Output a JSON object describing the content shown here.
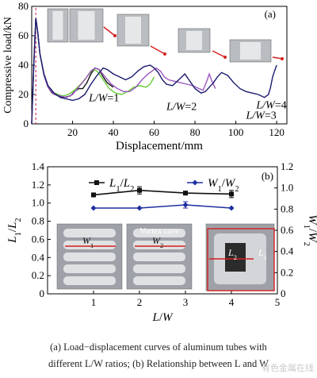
{
  "chart_data": [
    {
      "type": "line",
      "panel_label": "(a)",
      "xlabel": "Displacement/mm",
      "ylabel": "Compressive load/kN",
      "xlim": [
        0,
        125
      ],
      "ylim": [
        0,
        80
      ],
      "xticks": [
        "20",
        "40",
        "60",
        "80",
        "100",
        "120"
      ],
      "yticks": [
        "0",
        "20",
        "40",
        "60",
        "80"
      ],
      "grid": false,
      "series": [
        {
          "name": "L/W=1",
          "color": "#111111",
          "points": [
            [
              0,
              0
            ],
            [
              1,
              40
            ],
            [
              2,
              72
            ],
            [
              3,
              62
            ],
            [
              4,
              48
            ],
            [
              6,
              33
            ],
            [
              8,
              25
            ],
            [
              10,
              21
            ],
            [
              13,
              19
            ],
            [
              16,
              18
            ],
            [
              19,
              19
            ],
            [
              21,
              22
            ],
            [
              23,
              24
            ],
            [
              25,
              24
            ],
            [
              27,
              28
            ],
            [
              29,
              34
            ],
            [
              31,
              38
            ],
            [
              33,
              37
            ],
            [
              35,
              32
            ],
            [
              37,
              28
            ],
            [
              40,
              25
            ]
          ]
        },
        {
          "name": "L/W=2",
          "color": "#66cc33",
          "points": [
            [
              0,
              0
            ],
            [
              1,
              40
            ],
            [
              2,
              72
            ],
            [
              3,
              62
            ],
            [
              4,
              48
            ],
            [
              6,
              33
            ],
            [
              8,
              26
            ],
            [
              11,
              21
            ],
            [
              15,
              19
            ],
            [
              18,
              20
            ],
            [
              21,
              23
            ],
            [
              24,
              27
            ],
            [
              27,
              32
            ],
            [
              30,
              37
            ],
            [
              32,
              36
            ],
            [
              35,
              30
            ],
            [
              38,
              24
            ],
            [
              41,
              21
            ],
            [
              44,
              20
            ],
            [
              47,
              22
            ],
            [
              50,
              25
            ],
            [
              53,
              26
            ],
            [
              56,
              25
            ],
            [
              58,
              27
            ],
            [
              60,
              32
            ]
          ]
        },
        {
          "name": "L/W=3",
          "color": "#9b57c0",
          "points": [
            [
              0,
              0
            ],
            [
              1,
              40
            ],
            [
              2,
              72
            ],
            [
              3,
              62
            ],
            [
              4,
              48
            ],
            [
              6,
              33
            ],
            [
              8,
              25
            ],
            [
              11,
              20
            ],
            [
              14,
              19
            ],
            [
              17,
              18
            ],
            [
              20,
              20
            ],
            [
              23,
              25
            ],
            [
              26,
              30
            ],
            [
              29,
              36
            ],
            [
              31,
              38
            ],
            [
              33,
              37
            ],
            [
              36,
              32
            ],
            [
              39,
              27
            ],
            [
              42,
              24
            ],
            [
              45,
              22
            ],
            [
              48,
              22
            ],
            [
              51,
              25
            ],
            [
              54,
              30
            ],
            [
              57,
              34
            ],
            [
              59,
              36
            ],
            [
              61,
              38
            ],
            [
              63,
              36
            ],
            [
              65,
              32
            ],
            [
              67,
              30
            ],
            [
              70,
              29
            ],
            [
              73,
              28
            ],
            [
              76,
              27
            ],
            [
              79,
              26
            ],
            [
              82,
              24
            ],
            [
              84,
              23
            ],
            [
              86,
              30
            ],
            [
              87,
              34
            ],
            [
              88,
              30
            ],
            [
              90,
              24
            ]
          ]
        },
        {
          "name": "L/W=4",
          "color": "#1a1a6e",
          "points": [
            [
              0,
              0
            ],
            [
              1,
              40
            ],
            [
              2,
              72
            ],
            [
              3,
              62
            ],
            [
              4,
              48
            ],
            [
              6,
              34
            ],
            [
              8,
              26
            ],
            [
              11,
              21
            ],
            [
              14,
              18
            ],
            [
              17,
              17
            ],
            [
              20,
              16
            ],
            [
              23,
              17
            ],
            [
              26,
              20
            ],
            [
              29,
              27
            ],
            [
              32,
              33
            ],
            [
              35,
              38
            ],
            [
              37,
              37
            ],
            [
              40,
              34
            ],
            [
              43,
              32
            ],
            [
              46,
              30
            ],
            [
              49,
              32
            ],
            [
              52,
              36
            ],
            [
              55,
              39
            ],
            [
              58,
              40
            ],
            [
              60,
              38
            ],
            [
              62,
              35
            ],
            [
              64,
              30
            ],
            [
              66,
              27
            ],
            [
              69,
              26
            ],
            [
              72,
              30
            ],
            [
              75,
              34
            ],
            [
              77,
              30
            ],
            [
              80,
              24
            ],
            [
              83,
              21
            ],
            [
              85,
              22
            ],
            [
              87,
              25
            ],
            [
              89,
              28
            ],
            [
              91,
              32
            ],
            [
              93,
              35
            ],
            [
              96,
              33
            ],
            [
              99,
              28
            ],
            [
              102,
              24
            ],
            [
              105,
              22
            ],
            [
              108,
              21
            ],
            [
              111,
              20
            ],
            [
              114,
              18
            ],
            [
              116,
              20
            ],
            [
              117,
              25
            ],
            [
              118,
              32
            ],
            [
              119,
              36
            ],
            [
              120,
              40
            ]
          ]
        }
      ],
      "annotations": [
        "L/W=1",
        "L/W=2",
        "L/W=3",
        "L/W=4"
      ],
      "inset_count": 5
    },
    {
      "type": "line",
      "panel_label": "(b)",
      "xlabel": "L/W",
      "ylabel_left": "L1/L2",
      "ylabel_right": "W1/W2",
      "xlim": [
        0,
        5
      ],
      "ylim_left": [
        0,
        1.4
      ],
      "ylim_right": [
        0,
        1.2
      ],
      "xticks": [
        "0",
        "1",
        "2",
        "3",
        "4",
        "5"
      ],
      "yticks_left": [
        "0",
        "0.2",
        "0.4",
        "0.6",
        "0.8",
        "1.0",
        "1.2",
        "1.4"
      ],
      "yticks_right": [
        "0",
        "0.2",
        "0.4",
        "0.6",
        "0.8",
        "1.0",
        "1.2"
      ],
      "legend_placement": "top",
      "series": [
        {
          "name": "L1/L2",
          "axis": "left",
          "color": "#111111",
          "marker": "square",
          "x": [
            1,
            2,
            3,
            4
          ],
          "y": [
            1.09,
            1.14,
            1.11,
            1.1
          ],
          "err": [
            0.02,
            0.04,
            0.02,
            0.04
          ]
        },
        {
          "name": "W1/W2",
          "axis": "right",
          "color": "#1f2fa0",
          "marker": "diamond",
          "x": [
            1,
            2,
            3,
            4
          ],
          "y": [
            0.81,
            0.81,
            0.84,
            0.81
          ],
          "err": [
            0.0,
            0.0,
            0.03,
            0.0
          ]
        }
      ],
      "photo_labels": [
        "W1",
        "W2",
        "Vortex cave",
        "L2",
        "L1"
      ]
    }
  ],
  "caption": {
    "line1": "(a) Load−displacement curves of aluminum tubes with",
    "line2": "different L/W ratios; (b) Relationship between L and W"
  },
  "watermark": "有色金属在线"
}
